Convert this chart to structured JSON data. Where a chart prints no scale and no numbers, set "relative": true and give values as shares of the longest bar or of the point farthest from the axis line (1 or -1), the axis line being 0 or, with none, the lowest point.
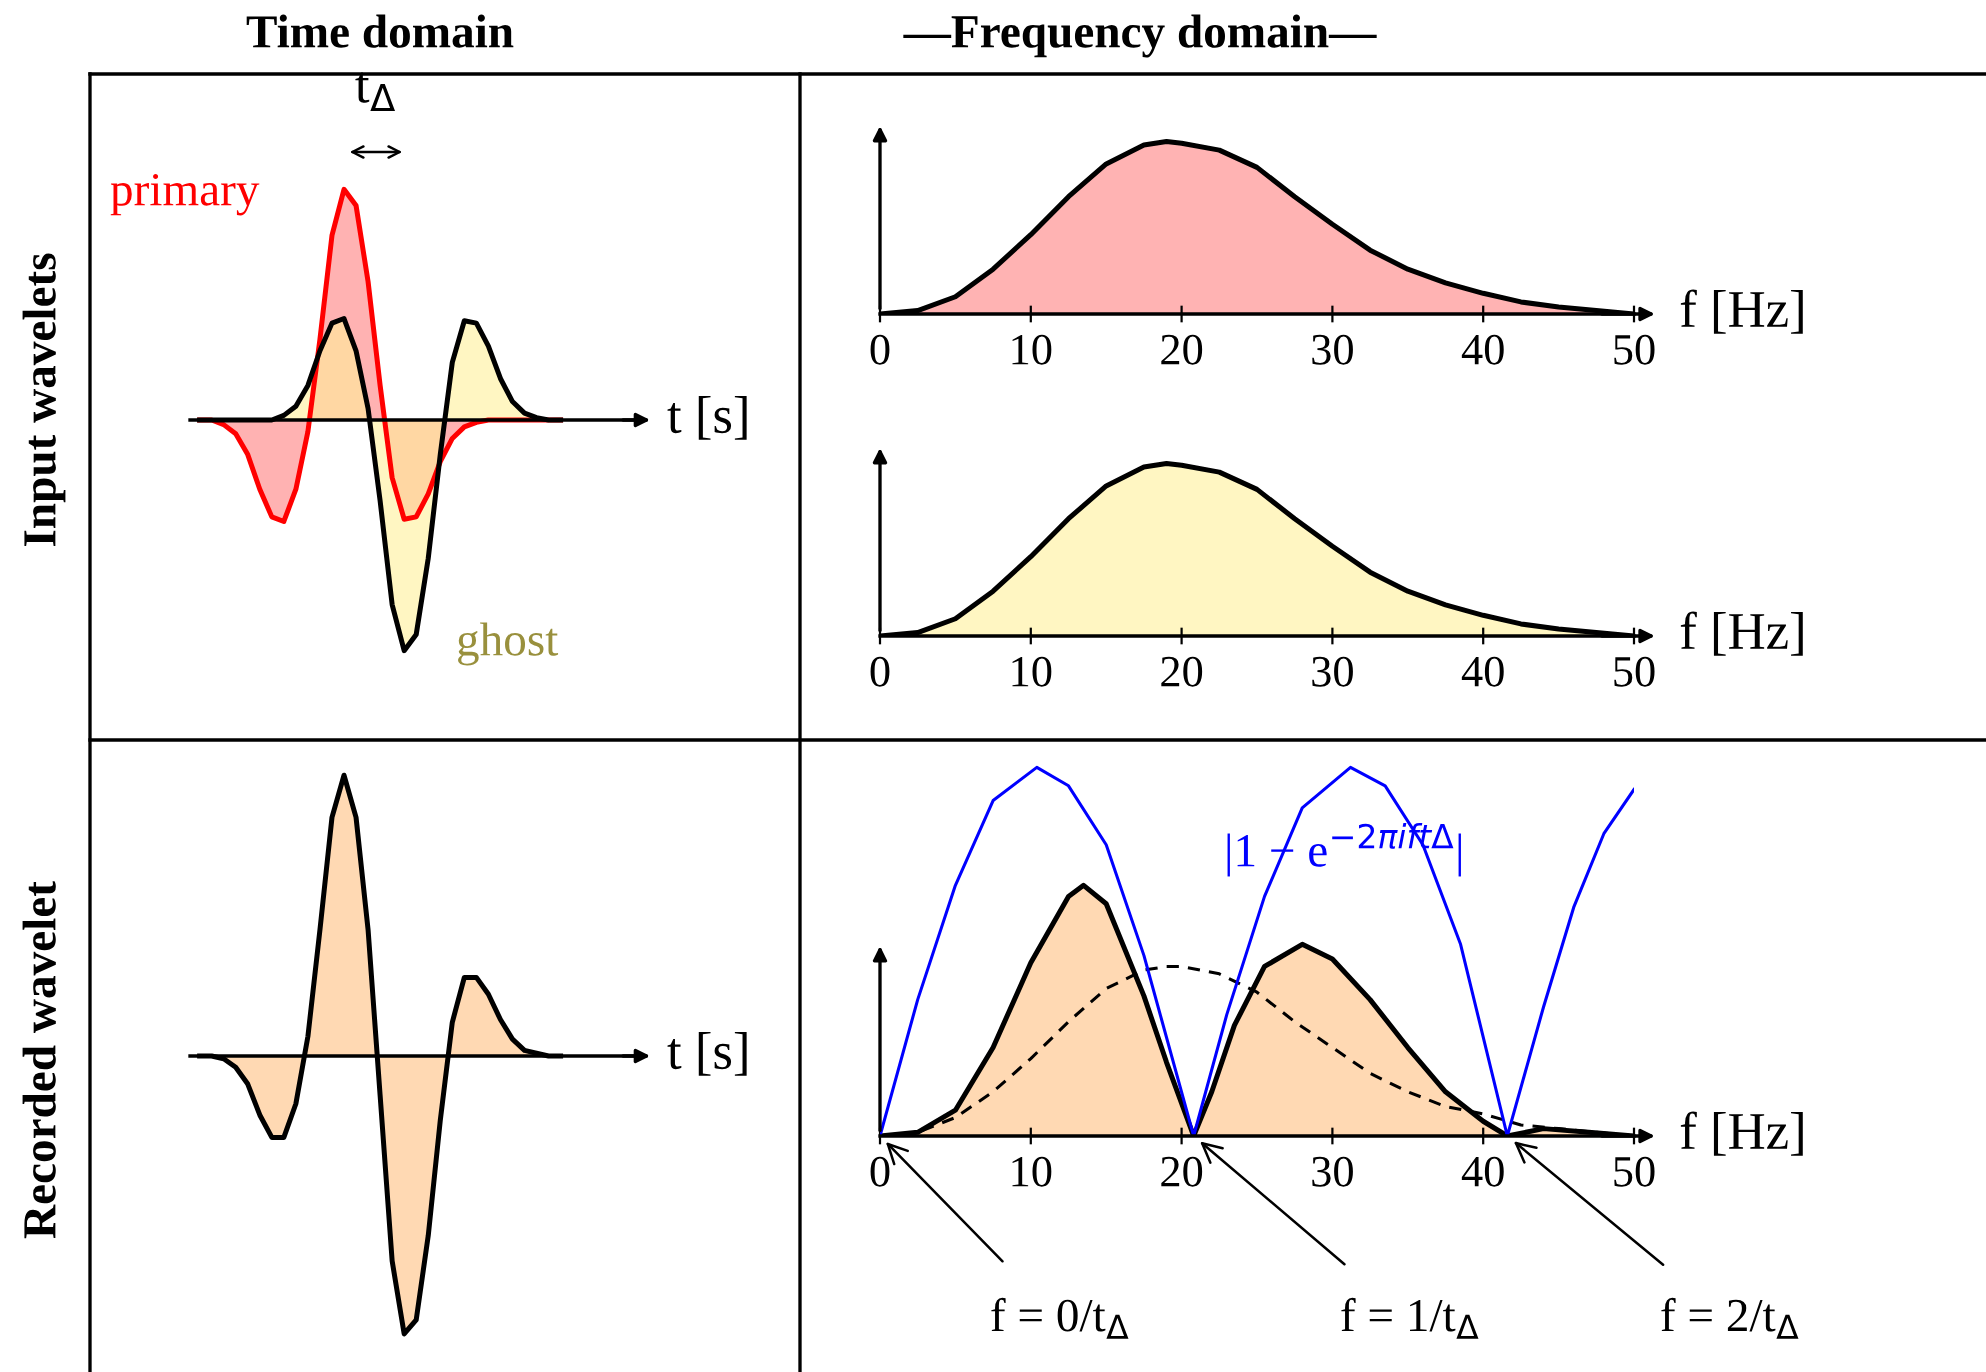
{
  "chart_data": [
    {
      "type": "area",
      "relative": true,
      "title": "Time domain",
      "ylabel": "Input wavelets",
      "xlabel": "t [s]",
      "tick_labels": false,
      "annotations": [
        "t$_{Δ}$"
      ],
      "categories": [
        null,
        null,
        null,
        null,
        null,
        null,
        null,
        null,
        null,
        null,
        null,
        null,
        null,
        null,
        null,
        null,
        null,
        null,
        null,
        null,
        null,
        null,
        null,
        null,
        null,
        null,
        null,
        null,
        null,
        null,
        null
      ],
      "series": [
        {
          "name": "primary",
          "color": "#ff0000",
          "values": [
            0,
            0,
            -0.02,
            -0.06,
            -0.15,
            -0.3,
            -0.42,
            -0.44,
            -0.3,
            -0.05,
            0.35,
            0.8,
            1.0,
            0.93,
            0.6,
            0.15,
            -0.25,
            -0.43,
            -0.42,
            -0.32,
            -0.18,
            -0.08,
            -0.03,
            -0.01,
            0,
            0,
            0,
            0,
            0,
            0,
            0
          ]
        },
        {
          "name": "ghost",
          "color": "#fff099",
          "values": [
            0,
            0,
            0,
            0,
            0,
            0,
            0,
            0.02,
            0.06,
            0.15,
            0.3,
            0.42,
            0.44,
            0.3,
            0.05,
            -0.35,
            -0.8,
            -1.0,
            -0.93,
            -0.6,
            -0.15,
            0.25,
            0.43,
            0.42,
            0.32,
            0.18,
            0.08,
            0.03,
            0.01,
            0,
            0
          ]
        }
      ]
    },
    {
      "type": "area",
      "relative": true,
      "title": "—Frequency domain—",
      "xlabel": "f [Hz]",
      "tick_labels": "x",
      "xlim": [
        0,
        50
      ],
      "xticks": [
        0,
        10,
        20,
        30,
        40,
        50
      ],
      "x": [
        0,
        2.5,
        5,
        7.5,
        10,
        12.5,
        15,
        17.5,
        19,
        20,
        22.5,
        25,
        27.5,
        30,
        32.5,
        35,
        37.5,
        40,
        42.5,
        45,
        47.5,
        50
      ],
      "series": [
        {
          "color": "#ff8080",
          "values": [
            0,
            0.02,
            0.1,
            0.26,
            0.46,
            0.68,
            0.87,
            0.98,
            1.0,
            0.99,
            0.95,
            0.85,
            0.68,
            0.52,
            0.37,
            0.26,
            0.18,
            0.12,
            0.07,
            0.04,
            0.02,
            0
          ]
        }
      ]
    },
    {
      "type": "area",
      "relative": true,
      "xlabel": "f [Hz]",
      "tick_labels": "x",
      "xlim": [
        0,
        50
      ],
      "xticks": [
        0,
        10,
        20,
        30,
        40,
        50
      ],
      "x": [
        0,
        2.5,
        5,
        7.5,
        10,
        12.5,
        15,
        17.5,
        19,
        20,
        22.5,
        25,
        27.5,
        30,
        32.5,
        35,
        37.5,
        40,
        42.5,
        45,
        47.5,
        50
      ],
      "series": [
        {
          "color": "#fff099",
          "values": [
            0,
            0.02,
            0.1,
            0.26,
            0.46,
            0.68,
            0.87,
            0.98,
            1.0,
            0.99,
            0.95,
            0.85,
            0.68,
            0.52,
            0.37,
            0.26,
            0.18,
            0.12,
            0.07,
            0.04,
            0.02,
            0
          ]
        }
      ]
    },
    {
      "type": "area",
      "relative": true,
      "ylabel": "Recorded wavelet",
      "xlabel": "t [s]",
      "tick_labels": false,
      "categories": [
        null,
        null,
        null,
        null,
        null,
        null,
        null,
        null,
        null,
        null,
        null,
        null,
        null,
        null,
        null,
        null,
        null,
        null,
        null,
        null,
        null,
        null,
        null,
        null,
        null,
        null,
        null,
        null,
        null,
        null,
        null
      ],
      "series": [
        {
          "color": "#ffc080",
          "values": [
            0,
            0,
            -0.01,
            -0.04,
            -0.1,
            -0.21,
            -0.29,
            -0.29,
            -0.17,
            0.07,
            0.45,
            0.85,
            1.0,
            0.85,
            0.45,
            -0.14,
            -0.73,
            -0.99,
            -0.94,
            -0.64,
            -0.23,
            0.12,
            0.28,
            0.28,
            0.22,
            0.13,
            0.06,
            0.02,
            0.01,
            0,
            0
          ]
        }
      ]
    },
    {
      "type": "area",
      "relative": true,
      "xlabel": "f [Hz]",
      "tick_labels": "x",
      "xlim": [
        0,
        50
      ],
      "xticks": [
        0,
        10,
        20,
        30,
        40,
        50
      ],
      "annotations": [
        {
          "text": "f = 0/t$_{Δ}$",
          "x": 0,
          "y": 0
        },
        {
          "text": "f = 1/t$_{Δ}$",
          "x": 20.8,
          "y": 0
        },
        {
          "text": "f = 2/t$_{Δ}$",
          "x": 41.6,
          "y": 0
        }
      ],
      "series": [
        {
          "color": "#ffc080",
          "x": [
            0,
            2.5,
            5,
            7.5,
            10,
            12.5,
            13.5,
            15,
            17.5,
            19,
            20.8,
            22,
            23.5,
            25.5,
            28,
            30,
            32.5,
            35,
            37.5,
            40,
            41.6,
            44,
            47,
            50
          ],
          "values": [
            0,
            0.01,
            0.07,
            0.24,
            0.47,
            0.65,
            0.68,
            0.63,
            0.38,
            0.2,
            0,
            0.12,
            0.3,
            0.46,
            0.52,
            0.48,
            0.37,
            0.24,
            0.12,
            0.04,
            0,
            0.02,
            0.01,
            0
          ]
        },
        {
          "type": "line",
          "line_style": "dashed",
          "color": "#000000",
          "x": [
            0,
            2.5,
            5,
            7.5,
            10,
            12.5,
            15,
            17.5,
            19,
            20,
            22.5,
            25,
            27.5,
            30,
            32.5,
            35,
            37.5,
            40,
            42.5,
            45,
            47.5,
            50
          ],
          "values": [
            0,
            0.01,
            0.05,
            0.12,
            0.21,
            0.31,
            0.4,
            0.45,
            0.46,
            0.46,
            0.44,
            0.39,
            0.31,
            0.24,
            0.17,
            0.12,
            0.08,
            0.06,
            0.03,
            0.02,
            0.01,
            0
          ]
        },
        {
          "type": "line",
          "name": "|1 − e$^{−2πiftΔ}$|",
          "color": "#0000ff",
          "x": [
            0,
            2.5,
            5,
            7.5,
            10.4,
            12.5,
            15,
            17.5,
            20.8,
            23,
            25.5,
            28,
            31.2,
            33.5,
            36,
            38.5,
            41.6,
            44,
            46,
            48,
            50
          ],
          "values": [
            0,
            0.37,
            0.68,
            0.91,
            1.0,
            0.95,
            0.79,
            0.49,
            0,
            0.33,
            0.65,
            0.89,
            1.0,
            0.95,
            0.79,
            0.52,
            0,
            0.35,
            0.62,
            0.82,
            0.94
          ]
        }
      ]
    }
  ]
}
